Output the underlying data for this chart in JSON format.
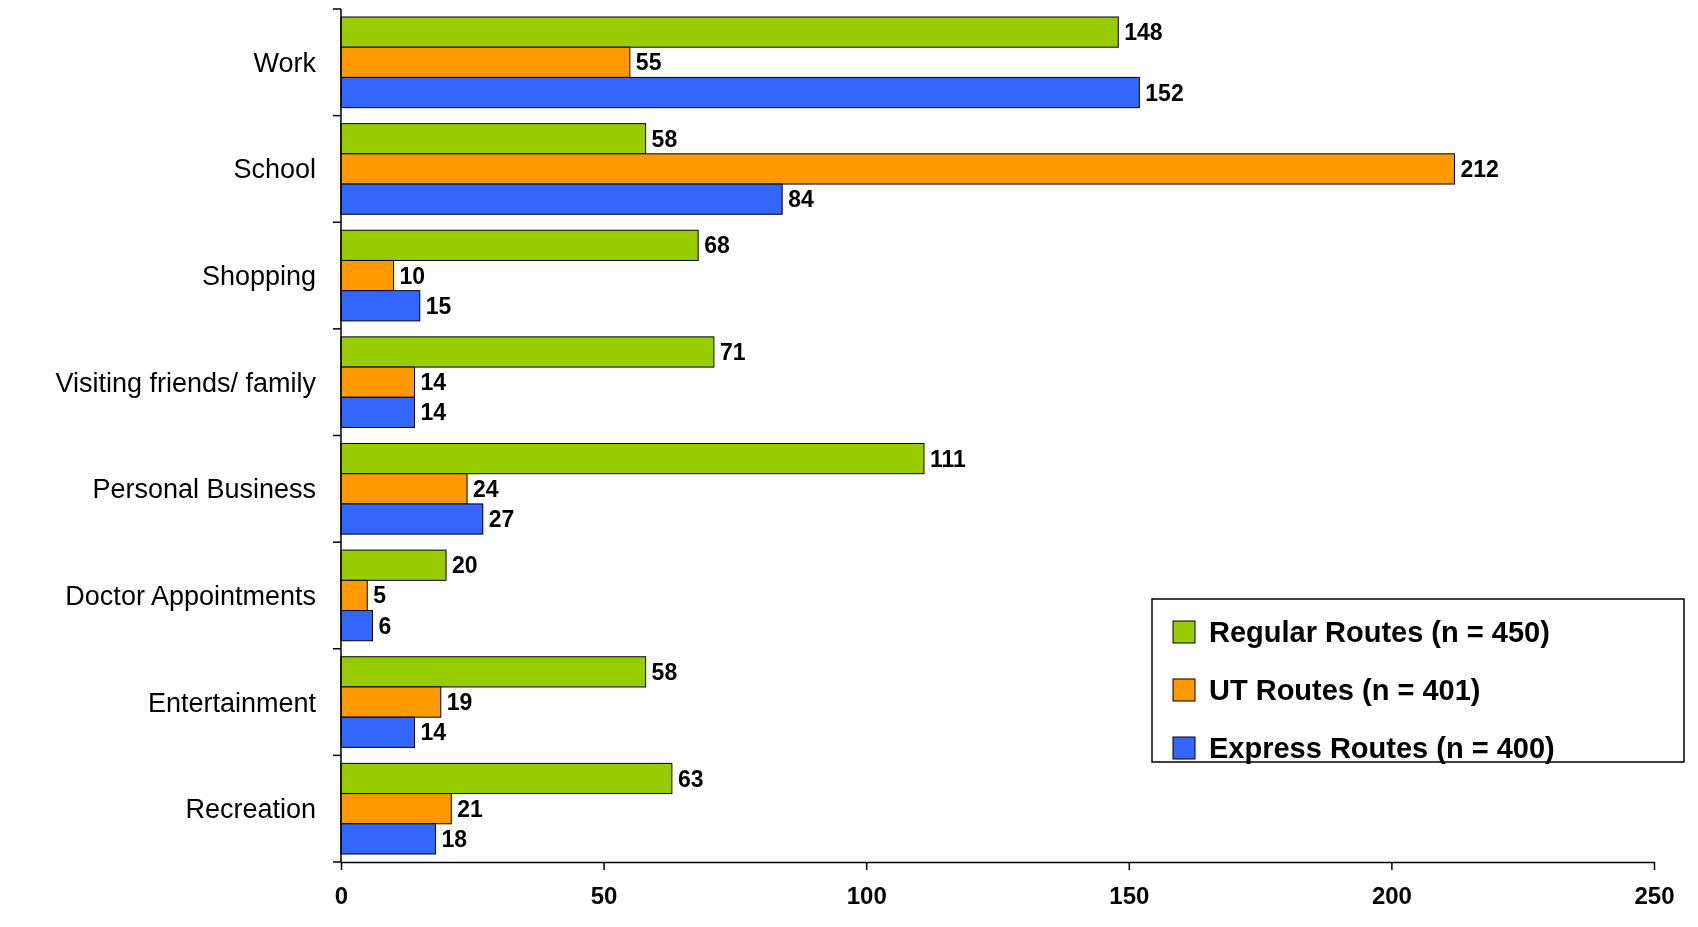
{
  "chart_data": {
    "type": "bar",
    "orientation": "horizontal",
    "categories": [
      "Work",
      "School",
      "Shopping",
      "Visiting friends/ family",
      "Personal Business",
      "Doctor Appointments",
      "Entertainment",
      "Recreation"
    ],
    "series": [
      {
        "name": "Regular Routes (n = 450)",
        "color": "#99cc00",
        "values": [
          148,
          58,
          68,
          71,
          111,
          20,
          58,
          63
        ]
      },
      {
        "name": "UT Routes (n = 401)",
        "color": "#ff9900",
        "values": [
          55,
          212,
          10,
          14,
          24,
          5,
          19,
          21
        ]
      },
      {
        "name": "Express Routes (n = 400)",
        "color": "#3366ff",
        "values": [
          152,
          84,
          15,
          14,
          27,
          6,
          14,
          18
        ]
      }
    ],
    "xlim": [
      0,
      250
    ],
    "xticks": [
      0,
      50,
      100,
      150,
      200,
      250
    ],
    "data_labels": true,
    "legend": "bottom right"
  }
}
